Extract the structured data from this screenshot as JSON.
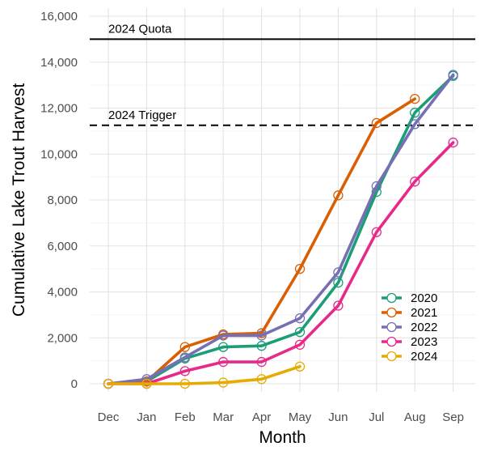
{
  "chart_data": {
    "type": "line",
    "title": "",
    "xlabel": "Month",
    "ylabel": "Cumulative Lake Trout Harvest",
    "categories": [
      "Dec",
      "Jan",
      "Feb",
      "Mar",
      "Apr",
      "May",
      "Jun",
      "Jul",
      "Aug",
      "Sep"
    ],
    "ylim": [
      0,
      16000
    ],
    "yticks": [
      0,
      2000,
      4000,
      6000,
      8000,
      10000,
      12000,
      14000,
      16000
    ],
    "ytick_labels": [
      "0",
      "2,000",
      "4,000",
      "6,000",
      "8,000",
      "10,000",
      "12,000",
      "14,000",
      "16,000"
    ],
    "grid": true,
    "legend_position": "bottom-right",
    "reference_lines": [
      {
        "label": "2024 Quota",
        "value": 15000,
        "style": "solid"
      },
      {
        "label": "2024 Trigger",
        "value": 11250,
        "style": "dashed"
      }
    ],
    "series": [
      {
        "name": "2020",
        "color": "#1b9e77",
        "values": [
          0,
          100,
          1100,
          1600,
          1650,
          2250,
          4400,
          8350,
          11800,
          13400
        ]
      },
      {
        "name": "2021",
        "color": "#d95f02",
        "values": [
          0,
          100,
          1600,
          2150,
          2200,
          5000,
          8200,
          11350,
          12400,
          null
        ]
      },
      {
        "name": "2022",
        "color": "#7570b3",
        "values": [
          0,
          200,
          1150,
          2100,
          2100,
          2850,
          4850,
          8600,
          11300,
          13450
        ]
      },
      {
        "name": "2023",
        "color": "#e7298a",
        "values": [
          0,
          0,
          550,
          950,
          950,
          1700,
          3400,
          6600,
          8800,
          10500
        ]
      },
      {
        "name": "2024",
        "color": "#e6ab02",
        "values": [
          0,
          0,
          0,
          50,
          200,
          750,
          null,
          null,
          null,
          null
        ]
      }
    ]
  }
}
